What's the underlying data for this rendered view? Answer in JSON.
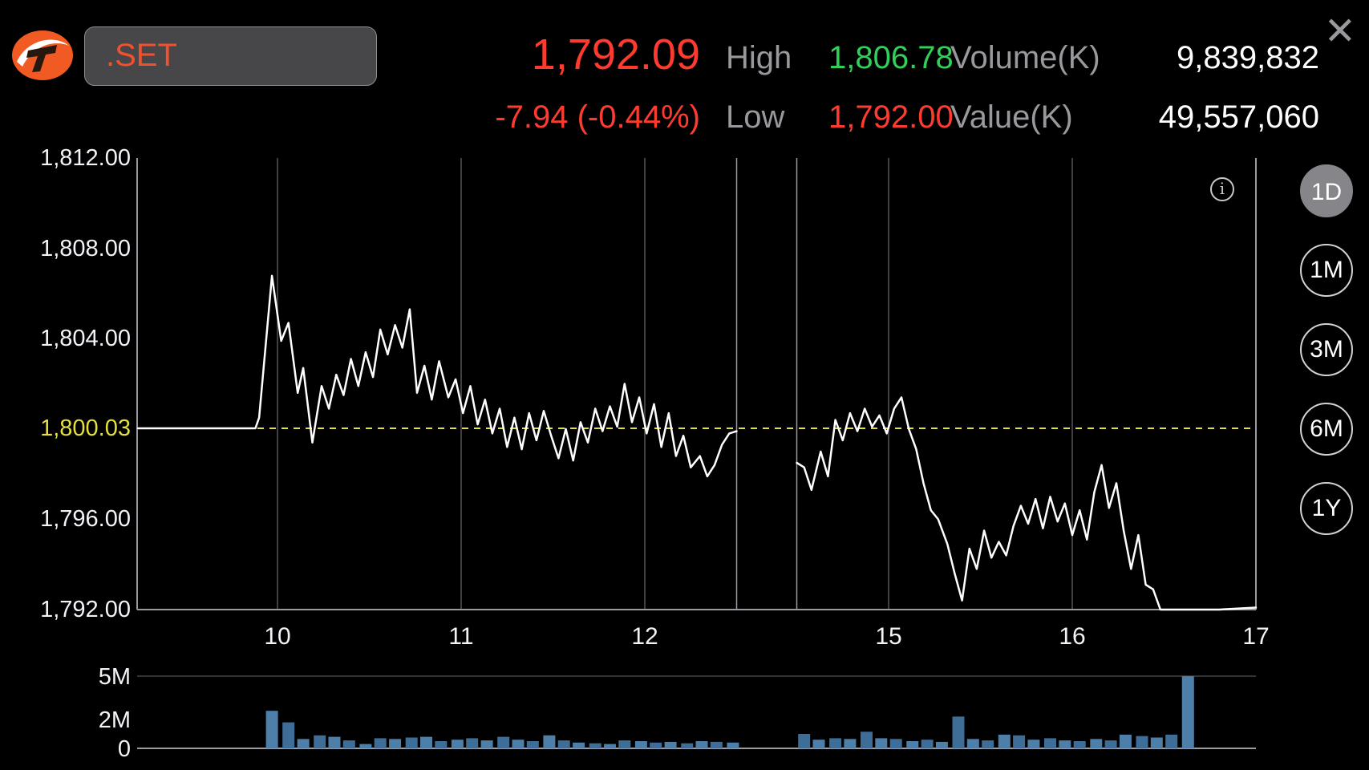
{
  "header": {
    "symbol": ".SET",
    "last_price": "1,792.09",
    "change": "-7.94 (-0.44%)",
    "high": {
      "label": "High",
      "value": "1,806.78"
    },
    "low": {
      "label": "Low",
      "value": "1,792.00"
    },
    "volume": {
      "label": "Volume(K)",
      "value": "9,839,832"
    },
    "value": {
      "label": "Value(K)",
      "value": "49,557,060"
    },
    "close_icon": "✕"
  },
  "info_icon": "i",
  "range_buttons": [
    {
      "label": "1D",
      "selected": true
    },
    {
      "label": "1M",
      "selected": false
    },
    {
      "label": "3M",
      "selected": false
    },
    {
      "label": "6M",
      "selected": false
    },
    {
      "label": "1Y",
      "selected": false
    }
  ],
  "colors": {
    "price_down": "#ff3b30",
    "price_up": "#30d158",
    "reference_yellow": "#e3df3d",
    "symbol_text": "#f4502c",
    "line": "#ffffff",
    "volume_bar": "#4d7fa8",
    "volume_bar_alt": "#3e6e97",
    "grid": "#55555b",
    "axis": "#9a9aa0"
  },
  "chart_data": {
    "type": "line",
    "symbol": ".SET",
    "x_axis": {
      "unit": "hour of day",
      "start_hour": 9.24,
      "end_hour": 17,
      "session_break": {
        "start": 12.5,
        "end": 14.5
      },
      "ticks": [
        {
          "label": "10",
          "hour": 10
        },
        {
          "label": "11",
          "hour": 11
        },
        {
          "label": "12",
          "hour": 12
        },
        {
          "label": "15",
          "hour": 15
        },
        {
          "label": "16",
          "hour": 16
        },
        {
          "label": "17",
          "hour": 17
        }
      ]
    },
    "y_axis": {
      "min": 1792,
      "max": 1812,
      "ticks": [
        {
          "label": "1,812.00",
          "value": 1812,
          "highlight": false
        },
        {
          "label": "1,808.00",
          "value": 1808,
          "highlight": false
        },
        {
          "label": "1,804.00",
          "value": 1804,
          "highlight": false
        },
        {
          "label": "1,800.03",
          "value": 1800.03,
          "highlight": true
        },
        {
          "label": "1,796.00",
          "value": 1796,
          "highlight": false
        },
        {
          "label": "1,792.00",
          "value": 1792,
          "highlight": false
        }
      ]
    },
    "reference_line": {
      "label": "1,800.03",
      "value": 1800.03
    },
    "price_series": {
      "name": ".SET intraday",
      "points": [
        [
          9.24,
          1800.03
        ],
        [
          9.88,
          1800.03
        ],
        [
          9.9,
          1800.5
        ],
        [
          9.97,
          1806.78
        ],
        [
          10.02,
          1803.9
        ],
        [
          10.06,
          1804.7
        ],
        [
          10.11,
          1801.6
        ],
        [
          10.14,
          1802.7
        ],
        [
          10.19,
          1799.4
        ],
        [
          10.24,
          1801.9
        ],
        [
          10.28,
          1800.9
        ],
        [
          10.32,
          1802.4
        ],
        [
          10.36,
          1801.5
        ],
        [
          10.4,
          1803.1
        ],
        [
          10.44,
          1801.9
        ],
        [
          10.48,
          1803.4
        ],
        [
          10.52,
          1802.3
        ],
        [
          10.56,
          1804.4
        ],
        [
          10.6,
          1803.3
        ],
        [
          10.64,
          1804.6
        ],
        [
          10.68,
          1803.6
        ],
        [
          10.72,
          1805.3
        ],
        [
          10.76,
          1801.6
        ],
        [
          10.8,
          1802.8
        ],
        [
          10.84,
          1801.3
        ],
        [
          10.88,
          1803.0
        ],
        [
          10.93,
          1801.4
        ],
        [
          10.97,
          1802.2
        ],
        [
          11.01,
          1800.7
        ],
        [
          11.05,
          1801.9
        ],
        [
          11.09,
          1800.2
        ],
        [
          11.13,
          1801.3
        ],
        [
          11.17,
          1799.8
        ],
        [
          11.21,
          1800.9
        ],
        [
          11.25,
          1799.2
        ],
        [
          11.29,
          1800.5
        ],
        [
          11.33,
          1799.1
        ],
        [
          11.37,
          1800.7
        ],
        [
          11.41,
          1799.5
        ],
        [
          11.45,
          1800.8
        ],
        [
          11.49,
          1799.7
        ],
        [
          11.53,
          1798.7
        ],
        [
          11.57,
          1800.0
        ],
        [
          11.61,
          1798.6
        ],
        [
          11.65,
          1800.3
        ],
        [
          11.69,
          1799.4
        ],
        [
          11.73,
          1800.9
        ],
        [
          11.77,
          1799.9
        ],
        [
          11.81,
          1801.0
        ],
        [
          11.85,
          1800.1
        ],
        [
          11.89,
          1802.0
        ],
        [
          11.93,
          1800.3
        ],
        [
          11.97,
          1801.4
        ],
        [
          12.01,
          1799.8
        ],
        [
          12.05,
          1801.1
        ],
        [
          12.09,
          1799.2
        ],
        [
          12.13,
          1800.7
        ],
        [
          12.17,
          1798.8
        ],
        [
          12.21,
          1799.7
        ],
        [
          12.25,
          1798.3
        ],
        [
          12.3,
          1798.8
        ],
        [
          12.34,
          1797.9
        ],
        [
          12.38,
          1798.4
        ],
        [
          12.42,
          1799.3
        ],
        [
          12.46,
          1799.8
        ],
        [
          12.5,
          1799.9
        ],
        [
          14.5,
          1798.5
        ],
        [
          14.54,
          1798.3
        ],
        [
          14.58,
          1797.3
        ],
        [
          14.63,
          1799.0
        ],
        [
          14.67,
          1797.9
        ],
        [
          14.71,
          1800.4
        ],
        [
          14.75,
          1799.5
        ],
        [
          14.79,
          1800.7
        ],
        [
          14.83,
          1799.9
        ],
        [
          14.87,
          1800.9
        ],
        [
          14.91,
          1800.1
        ],
        [
          14.95,
          1800.6
        ],
        [
          14.99,
          1799.8
        ],
        [
          15.03,
          1800.9
        ],
        [
          15.07,
          1801.4
        ],
        [
          15.11,
          1800.0
        ],
        [
          15.15,
          1799.1
        ],
        [
          15.19,
          1797.6
        ],
        [
          15.23,
          1796.4
        ],
        [
          15.27,
          1796.0
        ],
        [
          15.32,
          1794.9
        ],
        [
          15.36,
          1793.6
        ],
        [
          15.4,
          1792.4
        ],
        [
          15.44,
          1794.7
        ],
        [
          15.48,
          1793.8
        ],
        [
          15.52,
          1795.5
        ],
        [
          15.56,
          1794.3
        ],
        [
          15.6,
          1795.0
        ],
        [
          15.64,
          1794.4
        ],
        [
          15.68,
          1795.7
        ],
        [
          15.72,
          1796.6
        ],
        [
          15.76,
          1795.8
        ],
        [
          15.8,
          1796.9
        ],
        [
          15.84,
          1795.6
        ],
        [
          15.88,
          1797.0
        ],
        [
          15.92,
          1795.9
        ],
        [
          15.96,
          1796.7
        ],
        [
          16.0,
          1795.3
        ],
        [
          16.04,
          1796.4
        ],
        [
          16.08,
          1795.1
        ],
        [
          16.12,
          1797.2
        ],
        [
          16.16,
          1798.4
        ],
        [
          16.2,
          1796.5
        ],
        [
          16.24,
          1797.6
        ],
        [
          16.28,
          1795.5
        ],
        [
          16.32,
          1793.8
        ],
        [
          16.36,
          1795.3
        ],
        [
          16.4,
          1793.1
        ],
        [
          16.44,
          1792.9
        ],
        [
          16.48,
          1792.0
        ],
        [
          16.6,
          1792.0
        ],
        [
          16.8,
          1792.0
        ],
        [
          17.0,
          1792.09
        ]
      ]
    },
    "volume_chart": {
      "type": "bar",
      "unit": "shares (millions)",
      "scale_top": 5,
      "y_ticks": [
        {
          "label": "5M",
          "value": 5
        },
        {
          "label": "2M",
          "value": 2
        },
        {
          "label": "0",
          "value": 0
        }
      ],
      "points": [
        [
          9.97,
          2.6
        ],
        [
          10.06,
          1.8
        ],
        [
          10.14,
          0.65
        ],
        [
          10.23,
          0.9
        ],
        [
          10.31,
          0.8
        ],
        [
          10.39,
          0.55
        ],
        [
          10.48,
          0.3
        ],
        [
          10.56,
          0.7
        ],
        [
          10.64,
          0.65
        ],
        [
          10.73,
          0.75
        ],
        [
          10.81,
          0.8
        ],
        [
          10.89,
          0.5
        ],
        [
          10.98,
          0.6
        ],
        [
          11.06,
          0.7
        ],
        [
          11.14,
          0.55
        ],
        [
          11.23,
          0.8
        ],
        [
          11.31,
          0.6
        ],
        [
          11.39,
          0.5
        ],
        [
          11.48,
          0.9
        ],
        [
          11.56,
          0.55
        ],
        [
          11.64,
          0.4
        ],
        [
          11.73,
          0.35
        ],
        [
          11.81,
          0.3
        ],
        [
          11.89,
          0.55
        ],
        [
          11.98,
          0.5
        ],
        [
          12.06,
          0.4
        ],
        [
          12.14,
          0.45
        ],
        [
          12.23,
          0.35
        ],
        [
          12.31,
          0.5
        ],
        [
          12.39,
          0.45
        ],
        [
          12.48,
          0.4
        ],
        [
          14.54,
          1.0
        ],
        [
          14.62,
          0.6
        ],
        [
          14.71,
          0.7
        ],
        [
          14.79,
          0.65
        ],
        [
          14.88,
          1.15
        ],
        [
          14.96,
          0.7
        ],
        [
          15.04,
          0.65
        ],
        [
          15.13,
          0.5
        ],
        [
          15.21,
          0.6
        ],
        [
          15.29,
          0.45
        ],
        [
          15.38,
          2.2
        ],
        [
          15.46,
          0.65
        ],
        [
          15.54,
          0.55
        ],
        [
          15.63,
          0.95
        ],
        [
          15.71,
          0.9
        ],
        [
          15.79,
          0.6
        ],
        [
          15.88,
          0.7
        ],
        [
          15.96,
          0.55
        ],
        [
          16.04,
          0.5
        ],
        [
          16.13,
          0.65
        ],
        [
          16.21,
          0.55
        ],
        [
          16.29,
          0.95
        ],
        [
          16.38,
          0.85
        ],
        [
          16.46,
          0.75
        ],
        [
          16.54,
          0.95
        ],
        [
          16.63,
          5.0
        ]
      ]
    }
  }
}
